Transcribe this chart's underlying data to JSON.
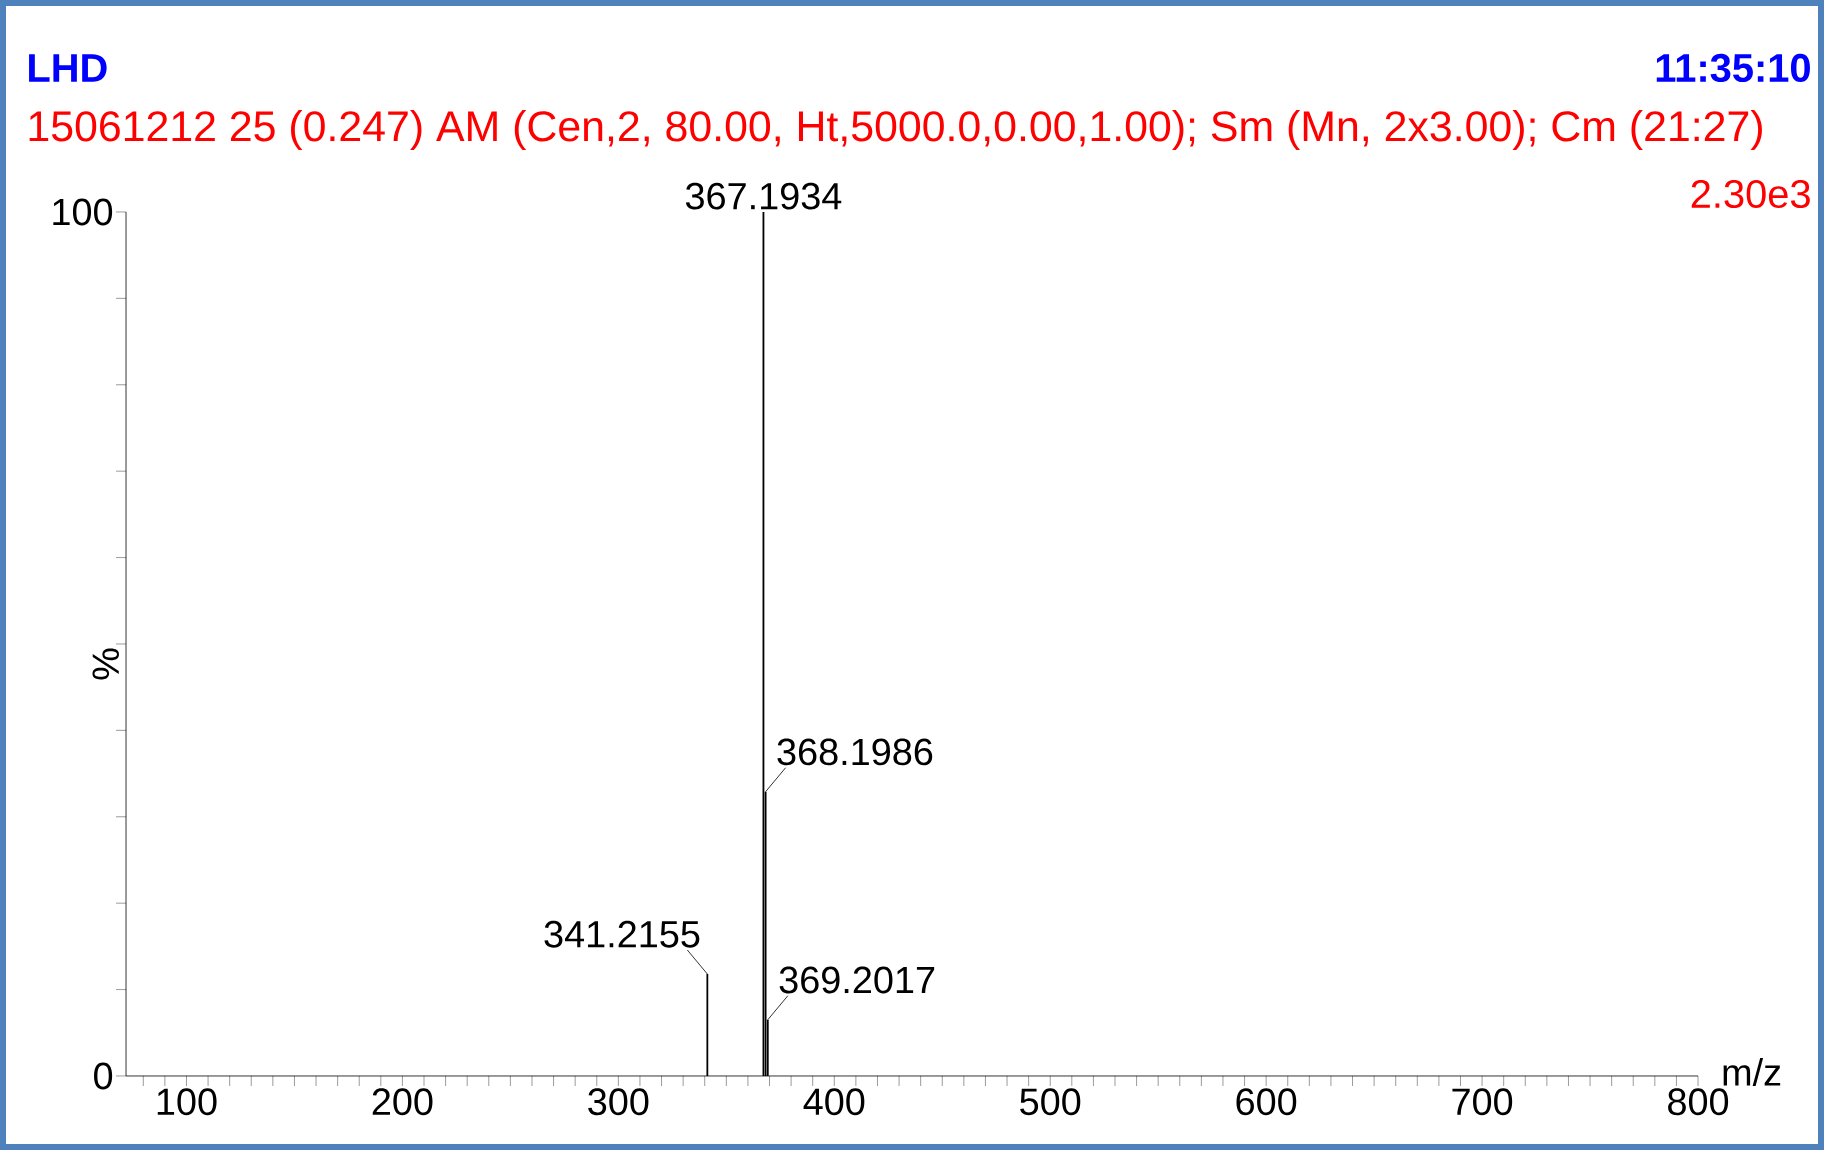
{
  "chart_data": {
    "type": "bar",
    "title": "LHD",
    "subtitle": "15061212 25 (0.247) AM (Cen,2, 80.00, Ht,5000.0,0.00,1.00); Sm (Mn, 2x3.00); Cm (21:27)",
    "xlabel": "m/z",
    "ylabel": "%",
    "annotations": [
      "11:35:10",
      "2.30e3",
      {
        "text": "341.2155",
        "x": 341.2155,
        "y": 11.8
      },
      {
        "text": "367.1934",
        "x": 367.1934,
        "y": 100
      },
      {
        "text": "368.1986",
        "x": 368.1986,
        "y": 32.9
      },
      {
        "text": "369.2017",
        "x": 369.2017,
        "y": 6.5
      }
    ],
    "x": [
      341.2155,
      367.1934,
      368.1986,
      369.2017
    ],
    "series": [
      {
        "color": "#000000",
        "values": [
          11.8,
          100,
          32.9,
          6.5
        ]
      }
    ],
    "xlim": [
      72,
      800
    ],
    "ylim": [
      0,
      100
    ],
    "xticks": [
      {
        "value": 80,
        "label": null
      },
      {
        "value": 90,
        "label": null
      },
      100,
      {
        "value": 110,
        "label": null
      },
      {
        "value": 120,
        "label": null
      },
      {
        "value": 130,
        "label": null
      },
      {
        "value": 140,
        "label": null
      },
      {
        "value": 150,
        "label": null
      },
      {
        "value": 160,
        "label": null
      },
      {
        "value": 170,
        "label": null
      },
      {
        "value": 180,
        "label": null
      },
      {
        "value": 190,
        "label": null
      },
      200,
      {
        "value": 210,
        "label": null
      },
      {
        "value": 220,
        "label": null
      },
      {
        "value": 230,
        "label": null
      },
      {
        "value": 240,
        "label": null
      },
      {
        "value": 250,
        "label": null
      },
      {
        "value": 260,
        "label": null
      },
      {
        "value": 270,
        "label": null
      },
      {
        "value": 280,
        "label": null
      },
      {
        "value": 290,
        "label": null
      },
      300,
      {
        "value": 310,
        "label": null
      },
      {
        "value": 320,
        "label": null
      },
      {
        "value": 330,
        "label": null
      },
      {
        "value": 340,
        "label": null
      },
      {
        "value": 350,
        "label": null
      },
      {
        "value": 360,
        "label": null
      },
      {
        "value": 370,
        "label": null
      },
      {
        "value": 380,
        "label": null
      },
      {
        "value": 390,
        "label": null
      },
      400,
      {
        "value": 410,
        "label": null
      },
      {
        "value": 420,
        "label": null
      },
      {
        "value": 430,
        "label": null
      },
      {
        "value": 440,
        "label": null
      },
      {
        "value": 450,
        "label": null
      },
      {
        "value": 460,
        "label": null
      },
      {
        "value": 470,
        "label": null
      },
      {
        "value": 480,
        "label": null
      },
      {
        "value": 490,
        "label": null
      },
      500,
      {
        "value": 510,
        "label": null
      },
      {
        "value": 520,
        "label": null
      },
      {
        "value": 530,
        "label": null
      },
      {
        "value": 540,
        "label": null
      },
      {
        "value": 550,
        "label": null
      },
      {
        "value": 560,
        "label": null
      },
      {
        "value": 570,
        "label": null
      },
      {
        "value": 580,
        "label": null
      },
      {
        "value": 590,
        "label": null
      },
      600,
      {
        "value": 610,
        "label": null
      },
      {
        "value": 620,
        "label": null
      },
      {
        "value": 630,
        "label": null
      },
      {
        "value": 640,
        "label": null
      },
      {
        "value": 650,
        "label": null
      },
      {
        "value": 660,
        "label": null
      },
      {
        "value": 670,
        "label": null
      },
      {
        "value": 680,
        "label": null
      },
      {
        "value": 690,
        "label": null
      },
      700,
      {
        "value": 710,
        "label": null
      },
      {
        "value": 720,
        "label": null
      },
      {
        "value": 730,
        "label": null
      },
      {
        "value": 740,
        "label": null
      },
      {
        "value": 750,
        "label": null
      },
      {
        "value": 760,
        "label": null
      },
      {
        "value": 770,
        "label": null
      },
      {
        "value": 780,
        "label": null
      },
      {
        "value": 790,
        "label": null
      },
      800
    ],
    "yticks": [
      0,
      {
        "value": 10,
        "label": null
      },
      {
        "value": 20,
        "label": null
      },
      {
        "value": 30,
        "label": null
      },
      {
        "value": 40,
        "label": null
      },
      {
        "value": 50,
        "label": null
      },
      {
        "value": 60,
        "label": null
      },
      {
        "value": 70,
        "label": null
      },
      {
        "value": 80,
        "label": null
      },
      {
        "value": 90,
        "label": null
      },
      100
    ]
  }
}
